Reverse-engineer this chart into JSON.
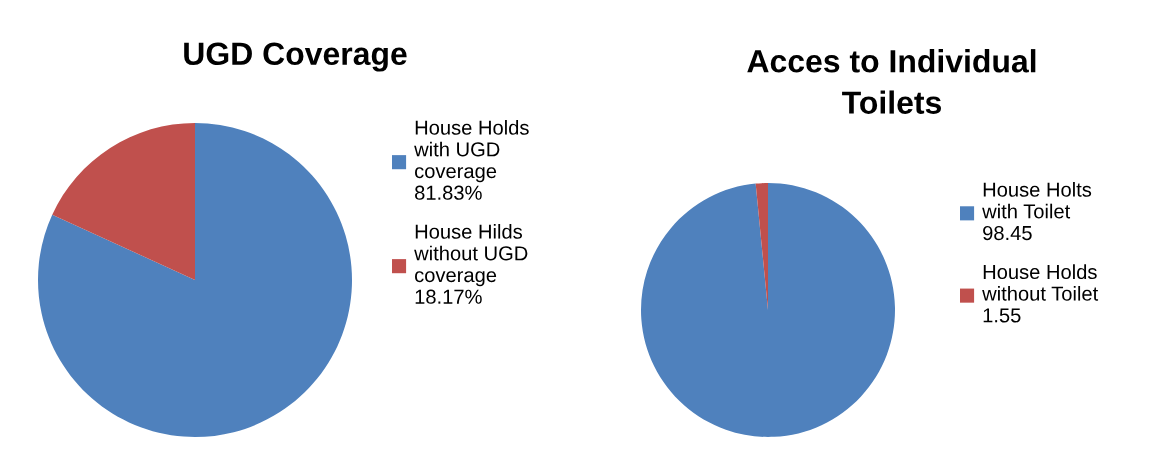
{
  "chart_data": [
    {
      "type": "pie",
      "title": "UGD Coverage",
      "categories": [
        "House Holds\nwith UGD\ncoverage\n81.83%",
        "House Hilds\nwithout UGD\ncoverage\n18.17%"
      ],
      "values": [
        81.83,
        18.17
      ],
      "colors": [
        "#4f81bd",
        "#c0504d"
      ],
      "legend": "right"
    },
    {
      "type": "pie",
      "title": "Acces to Individual\nToilets",
      "categories": [
        "House Holts\nwith Toilet\n98.45",
        "House Holds\nwithout Toilet\n1.55"
      ],
      "values": [
        98.45,
        1.55
      ],
      "colors": [
        "#4f81bd",
        "#c0504d"
      ],
      "legend": "right"
    }
  ]
}
